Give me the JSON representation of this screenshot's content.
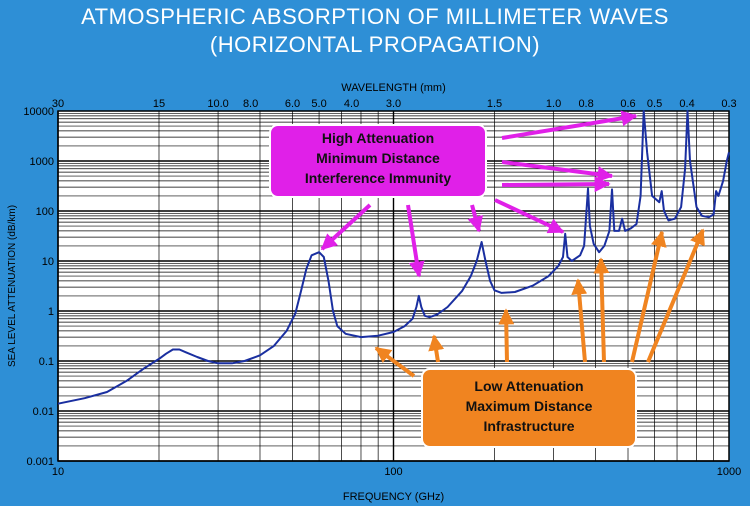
{
  "title": {
    "line1": "ATMOSPHERIC ABSORPTION OF MILLIMETER WAVES",
    "line2": "(HORIZONTAL PROPAGATION)"
  },
  "chart_data": {
    "type": "line",
    "xscale": "log",
    "yscale": "log",
    "xlim": [
      10,
      1000
    ],
    "ylim": [
      0.001,
      10000
    ],
    "xlabel": "FREQUENCY  (GHz)",
    "ylabel": "SEA LEVEL ATTENUATION  (dB/km)",
    "top_axis_label": "WAVELENGTH  (mm)",
    "x_ticks": [
      {
        "value": 10,
        "label": "10"
      },
      {
        "value": 100,
        "label": "100"
      },
      {
        "value": 1000,
        "label": "1000"
      }
    ],
    "y_ticks": [
      {
        "value": 0.001,
        "label": "0.001"
      },
      {
        "value": 0.01,
        "label": "0.01"
      },
      {
        "value": 0.1,
        "label": "0.1"
      },
      {
        "value": 1,
        "label": "1"
      },
      {
        "value": 10,
        "label": "10"
      },
      {
        "value": 100,
        "label": "100"
      },
      {
        "value": 1000,
        "label": "1000"
      },
      {
        "value": 10000,
        "label": "10000"
      }
    ],
    "top_ticks": [
      {
        "mm": 30,
        "label": "30"
      },
      {
        "mm": 15,
        "label": "15"
      },
      {
        "mm": 10,
        "label": "10.0"
      },
      {
        "mm": 8,
        "label": "8.0"
      },
      {
        "mm": 6,
        "label": "6.0"
      },
      {
        "mm": 5,
        "label": "5.0"
      },
      {
        "mm": 4,
        "label": "4.0"
      },
      {
        "mm": 3,
        "label": "3.0"
      },
      {
        "mm": 1.5,
        "label": "1.5"
      },
      {
        "mm": 1,
        "label": "1.0"
      },
      {
        "mm": 0.8,
        "label": "0.8"
      },
      {
        "mm": 0.6,
        "label": "0.6"
      },
      {
        "mm": 0.5,
        "label": "0.5"
      },
      {
        "mm": 0.4,
        "label": "0.4"
      },
      {
        "mm": 0.3,
        "label": "0.3"
      }
    ],
    "grid": true,
    "series": [
      {
        "color": "#1a2fa0",
        "points": [
          [
            10,
            0.014
          ],
          [
            12,
            0.018
          ],
          [
            14,
            0.024
          ],
          [
            16,
            0.04
          ],
          [
            18,
            0.07
          ],
          [
            20,
            0.11
          ],
          [
            21,
            0.14
          ],
          [
            22,
            0.17
          ],
          [
            23,
            0.17
          ],
          [
            24,
            0.15
          ],
          [
            26,
            0.12
          ],
          [
            28,
            0.1
          ],
          [
            30,
            0.09
          ],
          [
            33,
            0.09
          ],
          [
            36,
            0.1
          ],
          [
            40,
            0.13
          ],
          [
            44,
            0.2
          ],
          [
            48,
            0.4
          ],
          [
            51,
            0.9
          ],
          [
            53,
            2.5
          ],
          [
            55,
            7
          ],
          [
            57,
            13
          ],
          [
            60,
            15
          ],
          [
            62,
            12
          ],
          [
            64,
            4
          ],
          [
            66,
            1
          ],
          [
            68,
            0.5
          ],
          [
            72,
            0.35
          ],
          [
            80,
            0.3
          ],
          [
            90,
            0.32
          ],
          [
            100,
            0.38
          ],
          [
            108,
            0.5
          ],
          [
            114,
            0.7
          ],
          [
            117,
            1.2
          ],
          [
            119,
            2.0
          ],
          [
            121,
            1.2
          ],
          [
            124,
            0.8
          ],
          [
            128,
            0.75
          ],
          [
            135,
            0.85
          ],
          [
            145,
            1.2
          ],
          [
            160,
            2.5
          ],
          [
            170,
            5
          ],
          [
            177,
            10
          ],
          [
            183,
            24
          ],
          [
            188,
            10
          ],
          [
            194,
            4
          ],
          [
            200,
            2.6
          ],
          [
            210,
            2.3
          ],
          [
            230,
            2.4
          ],
          [
            260,
            3.2
          ],
          [
            290,
            5
          ],
          [
            310,
            8
          ],
          [
            320,
            12
          ],
          [
            325,
            35
          ],
          [
            330,
            12
          ],
          [
            340,
            10
          ],
          [
            360,
            13
          ],
          [
            370,
            20
          ],
          [
            380,
            280
          ],
          [
            385,
            50
          ],
          [
            395,
            22
          ],
          [
            410,
            15
          ],
          [
            425,
            20
          ],
          [
            440,
            40
          ],
          [
            448,
            270
          ],
          [
            455,
            40
          ],
          [
            470,
            40
          ],
          [
            480,
            70
          ],
          [
            490,
            40
          ],
          [
            510,
            45
          ],
          [
            530,
            55
          ],
          [
            545,
            200
          ],
          [
            557,
            10000
          ],
          [
            570,
            1500
          ],
          [
            590,
            200
          ],
          [
            620,
            150
          ],
          [
            630,
            250
          ],
          [
            640,
            100
          ],
          [
            660,
            65
          ],
          [
            690,
            70
          ],
          [
            720,
            120
          ],
          [
            740,
            700
          ],
          [
            752,
            10000
          ],
          [
            765,
            1000
          ],
          [
            800,
            120
          ],
          [
            830,
            80
          ],
          [
            870,
            75
          ],
          [
            900,
            85
          ],
          [
            915,
            250
          ],
          [
            930,
            200
          ],
          [
            960,
            400
          ],
          [
            985,
            1000
          ],
          [
            1000,
            1500
          ]
        ]
      }
    ]
  },
  "callouts": {
    "high": {
      "line1": "High Attenuation",
      "line2": "Minimum Distance",
      "line3": "Interference Immunity",
      "color": "#e020e8"
    },
    "low": {
      "line1": "Low Attenuation",
      "line2": "Maximum Distance",
      "line3": "Infrastructure",
      "color": "#f08420"
    }
  },
  "colors": {
    "background": "#2e8fd6",
    "plot": "#ffffff",
    "grid": "#000000",
    "curve": "#1a2fa0"
  }
}
